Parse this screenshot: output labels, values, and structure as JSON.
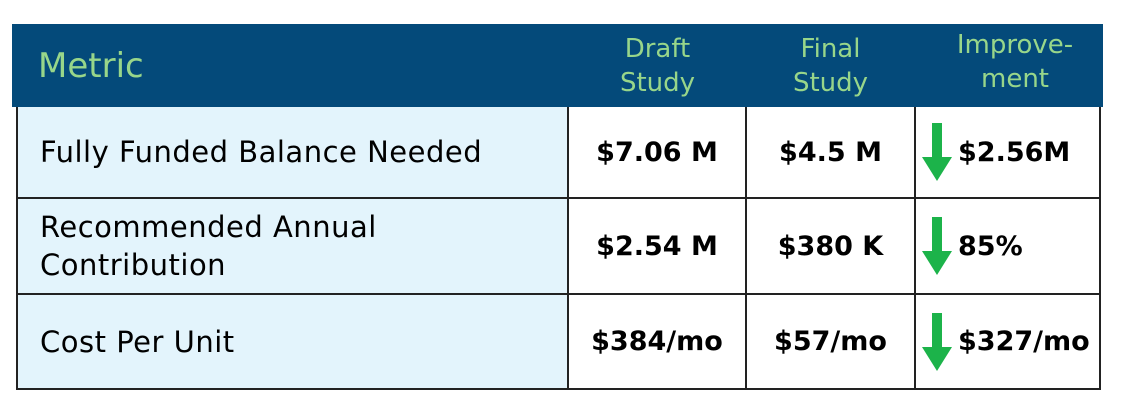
{
  "header": {
    "metric": "Metric",
    "draft": "Draft Study",
    "final": "Final Study",
    "improvement": "Improve- ment"
  },
  "rows": [
    {
      "metric": "Fully Funded Balance Needed",
      "draft": "$7.06 M",
      "final": "$4.5 M",
      "improvement": "$2.56M",
      "icon": "arrow-down-icon"
    },
    {
      "metric": "Recommended Annual Contribution",
      "draft": "$2.54 M",
      "final": "$380 K",
      "improvement": "85%",
      "icon": "arrow-down-icon"
    },
    {
      "metric": "Cost Per Unit",
      "draft": "$384/mo",
      "final": "$57/mo",
      "improvement": "$327/mo",
      "icon": "arrow-down-icon"
    }
  ],
  "colors": {
    "header_bg": "#044a7a",
    "header_text": "#98d68a",
    "metric_bg": "#e3f4fc",
    "arrow": "#1cb34a"
  }
}
